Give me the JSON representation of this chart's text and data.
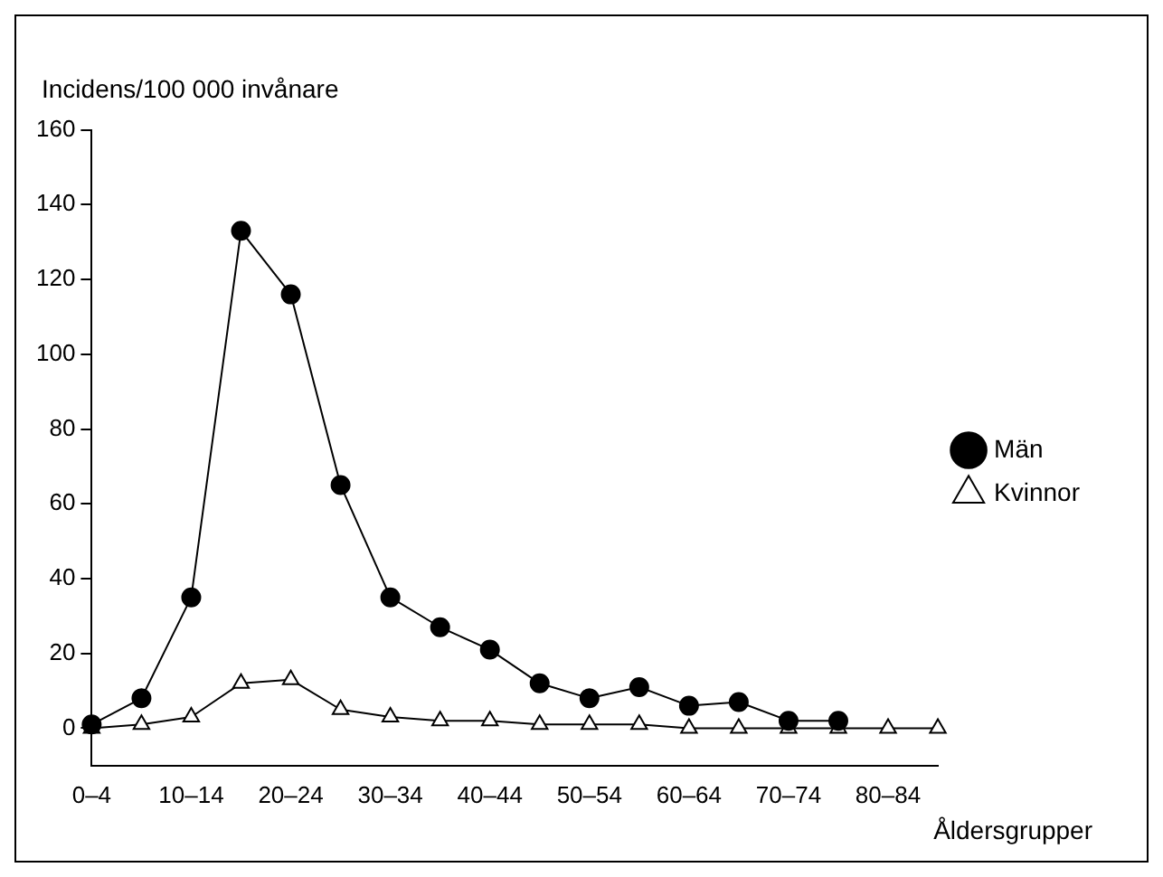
{
  "chart_data": {
    "type": "line",
    "ylabel": "Incidens/100 000 invånare",
    "xlabel": "Åldersgrupper",
    "categories": [
      "0–4",
      null,
      "10–14",
      null,
      "20–24",
      null,
      "30–34",
      null,
      "40–44",
      null,
      "50–54",
      null,
      "60–64",
      null,
      "70–74",
      null,
      "80–84",
      null
    ],
    "series": [
      {
        "name": "Män",
        "color": "#000000",
        "marker": "circle",
        "values": [
          1,
          8,
          35,
          133,
          116,
          65,
          35,
          27,
          21,
          12,
          8,
          11,
          6,
          7,
          2,
          2,
          null,
          null
        ]
      },
      {
        "name": "Kvinnor",
        "color": "#000000",
        "marker": "triangle",
        "values": [
          0,
          1,
          3,
          12,
          13,
          5,
          3,
          2,
          2,
          1,
          1,
          1,
          0,
          0,
          0,
          0,
          0,
          0
        ]
      }
    ],
    "ylim": [
      -10,
      160
    ],
    "yticks": [
      0,
      20,
      40,
      60,
      80,
      100,
      120,
      140,
      160
    ],
    "grid": false,
    "legend": "right"
  }
}
